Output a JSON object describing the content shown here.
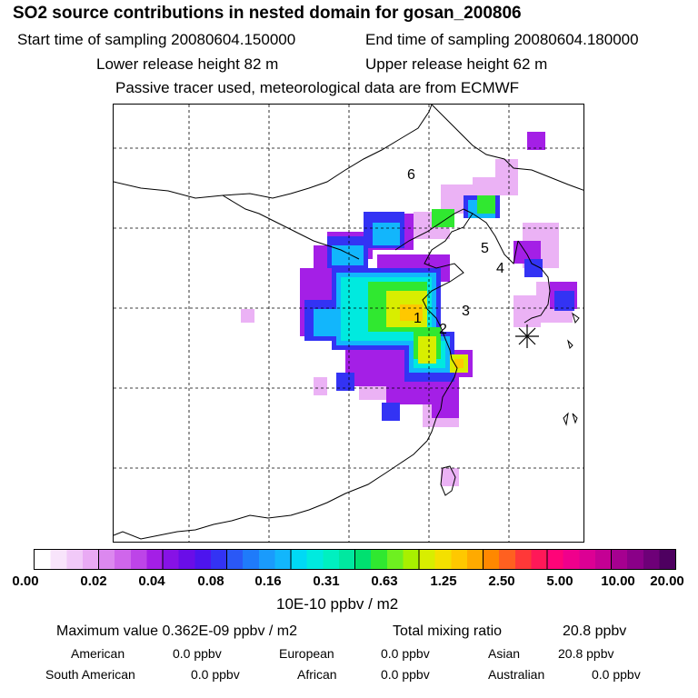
{
  "header": {
    "title": "SO2 source contributions in nested domain for gosan_200806",
    "start_label": "Start time of sampling 20080604.150000",
    "end_label": "End time of sampling 20080604.180000",
    "lower_label": "Lower release height   82 m",
    "upper_label": "Upper release height   62 m",
    "tracer_label": "Passive tracer used, meteorological data are from ECMWF"
  },
  "map": {
    "region_labels": [
      "1",
      "2",
      "3",
      "4",
      "5",
      "6"
    ],
    "receptor_marker": "asterisk-icon"
  },
  "colorbar": {
    "tick_labels": [
      "0.00",
      "0.02",
      "0.04",
      "0.08",
      "0.16",
      "0.31",
      "0.63",
      "1.25",
      "2.50",
      "5.00",
      "10.00",
      "20.00"
    ],
    "colors": [
      "#ffffff",
      "#f8e4fb",
      "#f1c9f8",
      "#e9aaf4",
      "#dc88ef",
      "#cf66eb",
      "#bd44e8",
      "#a41fe6",
      "#8712e6",
      "#6a0de8",
      "#4d14ee",
      "#3333f4",
      "#2a58f6",
      "#1f7bfa",
      "#1a9bfc",
      "#12b6fc",
      "#00d9f5",
      "#00eadf",
      "#00f0c0",
      "#00e8a0",
      "#00e070",
      "#30e830",
      "#6ef020",
      "#a8f000",
      "#d8ee00",
      "#f4e000",
      "#ffc800",
      "#ffaa00",
      "#ff8800",
      "#ff6020",
      "#ff3838",
      "#ff1858",
      "#ff0478",
      "#f0008c",
      "#dc0094",
      "#c40094",
      "#a60090",
      "#8a0088",
      "#6e0078",
      "#4e0060"
    ],
    "unit_label": "10E-10 ppbv / m2"
  },
  "footer": {
    "max_label": "Maximum value  0.362E-09 ppbv / m2",
    "total_label": "Total mixing ratio",
    "total_value": "20.8 ppbv",
    "rows": [
      {
        "name": "American",
        "value": "0.0 ppbv"
      },
      {
        "name": "European",
        "value": "0.0 ppbv"
      },
      {
        "name": "Asian",
        "value": "20.8 ppbv"
      },
      {
        "name": "South American",
        "value": "0.0 ppbv"
      },
      {
        "name": "African",
        "value": "0.0 ppbv"
      },
      {
        "name": "Australian",
        "value": "0.0 ppbv"
      }
    ]
  }
}
